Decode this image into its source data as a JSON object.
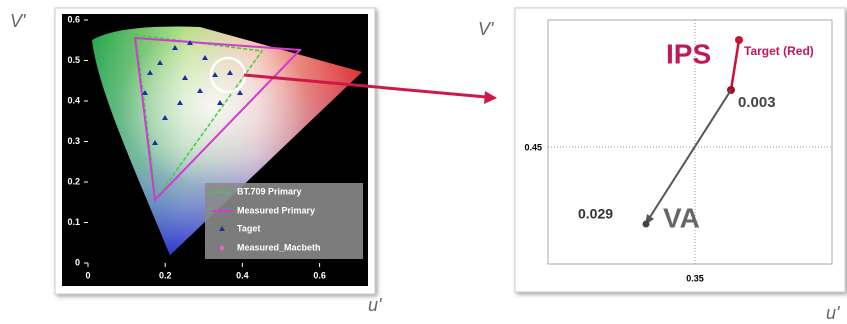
{
  "left_panel": {
    "y_axis_label": "V'",
    "x_axis_label": "u'",
    "yticks": [
      0,
      0.1,
      0.2,
      0.3,
      0.4,
      0.5,
      0.6
    ],
    "xticks": [
      0,
      0.2,
      0.4,
      0.6
    ],
    "legend": [
      "BT.709 Primary",
      "Measured Primary",
      "Taget",
      "Measured_Macbeth"
    ]
  },
  "right_panel": {
    "y_axis_label": "V'",
    "x_axis_label": "u'",
    "ytick": 0.45,
    "xtick": 0.35,
    "ips_label": "IPS",
    "target_label": "Target (Red)",
    "ips_shift": 0.003,
    "va_label": "VA",
    "va_shift": 0.029
  }
}
